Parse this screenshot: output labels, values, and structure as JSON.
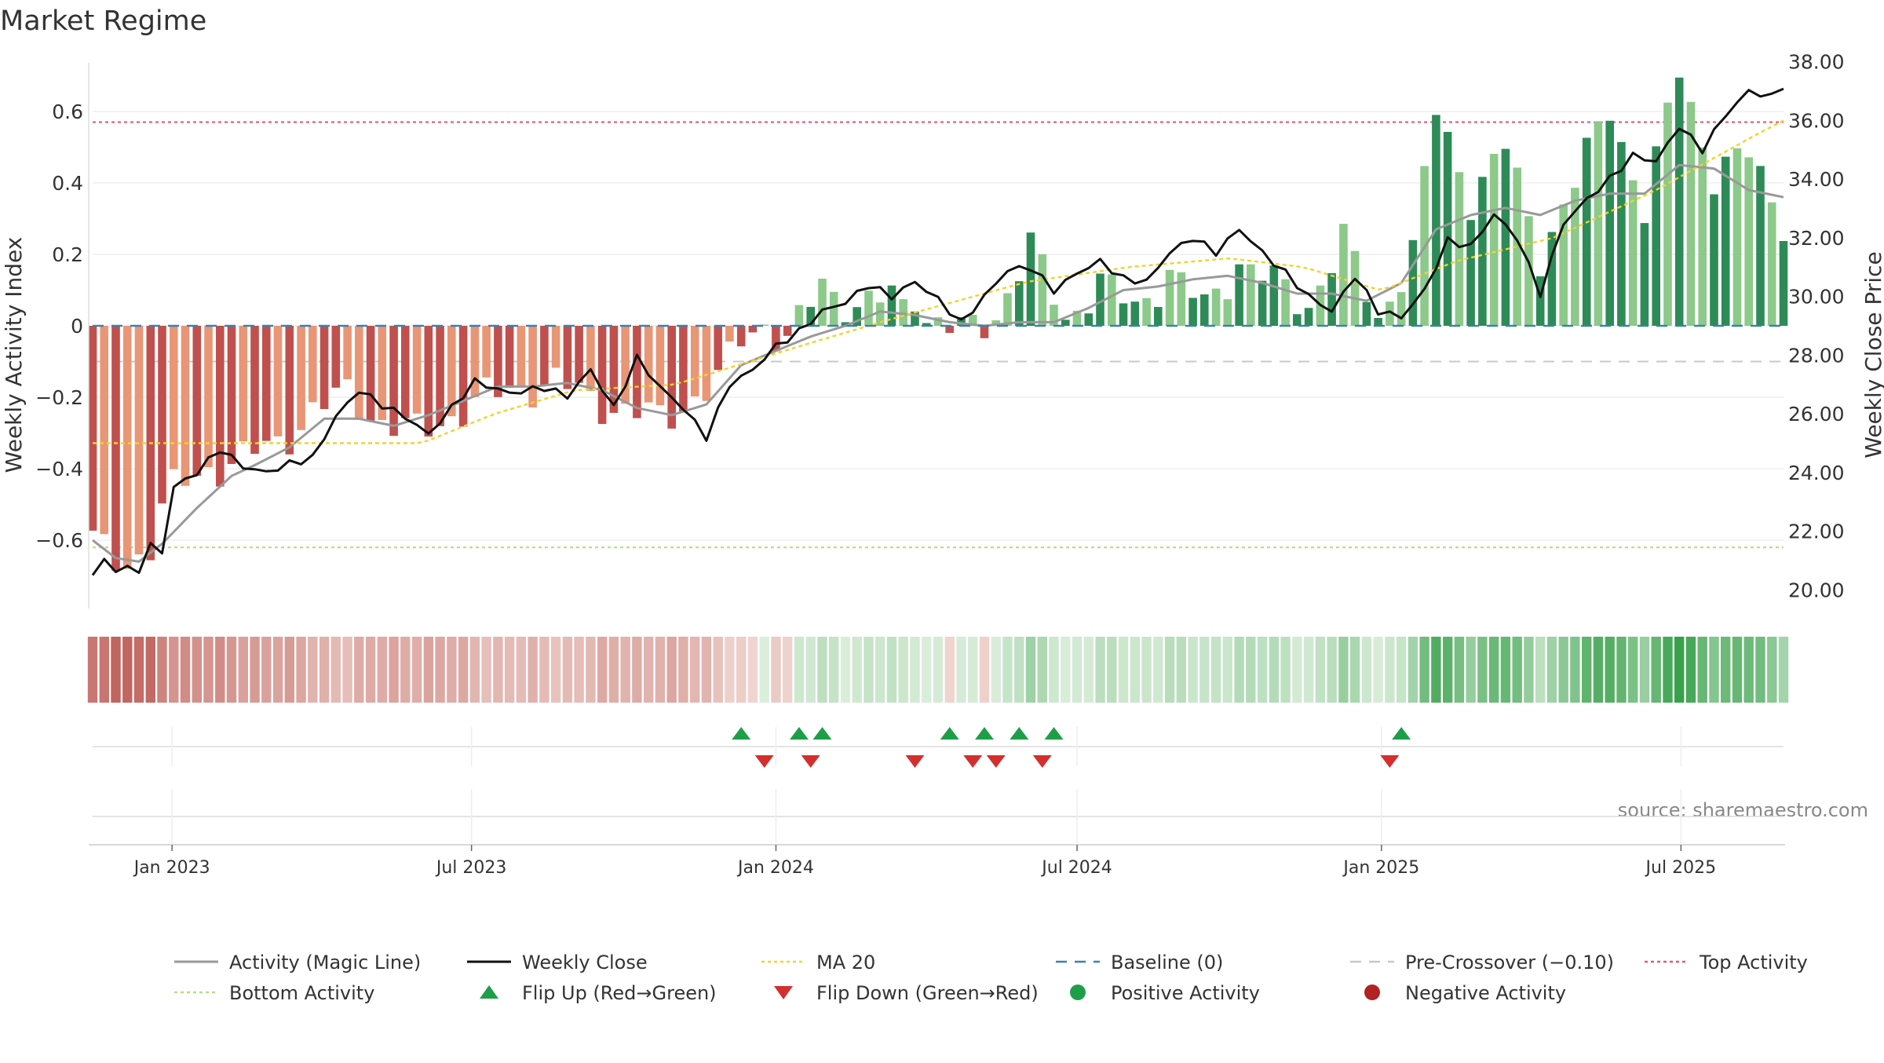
{
  "title": "Market Regime",
  "source_text": "source: sharemaestro.com",
  "colors": {
    "neg_dark": "#c0504d",
    "neg_light": "#e89676",
    "pos_dark": "#2e8b57",
    "pos_light": "#8cc98a",
    "magic": "#999999",
    "close": "#111111",
    "ma": "#f2d22e",
    "baseline": "#3a7fb5",
    "precross": "#c8c8c8",
    "top": "#e05a7a",
    "bottom": "#b9dd80",
    "flip_up": "#1f9e4a",
    "flip_down": "#d32f2f",
    "pos_dot": "#1f9e4a",
    "neg_dot": "#b22222"
  },
  "chart_data": {
    "type": "bar+line",
    "date_range": [
      "2022-11-14",
      "2025-09-01"
    ],
    "left_axis": {
      "label": "Weekly Activity Index",
      "ylim": [
        -0.78,
        0.78
      ],
      "ticks": [
        -0.6,
        -0.4,
        -0.2,
        0,
        0.2,
        0.4,
        0.6
      ],
      "tick_labels": [
        "−0.6",
        "−0.4",
        "−0.2",
        "0",
        "0.2",
        "0.4",
        "0.6"
      ]
    },
    "right_axis": {
      "label": "Weekly Close Price",
      "ylim": [
        19.5,
        38.5
      ],
      "ticks": [
        20,
        22,
        24,
        26,
        28,
        30,
        32,
        34,
        36,
        38
      ],
      "tick_labels": [
        "20.00",
        "22.00",
        "24.00",
        "26.00",
        "28.00",
        "30.00",
        "32.00",
        "34.00",
        "36.00",
        "38.00"
      ]
    },
    "x_ticks": [
      {
        "label": "Jan 2023",
        "date": "2023-01-01"
      },
      {
        "label": "Jul 2023",
        "date": "2023-07-01"
      },
      {
        "label": "Jan 2024",
        "date": "2024-01-01"
      },
      {
        "label": "Jul 2024",
        "date": "2024-07-01"
      },
      {
        "label": "Jan 2025",
        "date": "2025-01-01"
      },
      {
        "label": "Jul 2025",
        "date": "2025-07-01"
      }
    ],
    "reference_lines": {
      "baseline": 0,
      "pre_crossover": -0.1,
      "top_activity": 0.57,
      "bottom_activity": -0.62
    },
    "activity_keys": [
      [
        "2022-11-14",
        -0.6
      ],
      [
        "2022-11-21",
        -0.64
      ],
      [
        "2022-11-28",
        -0.66
      ],
      [
        "2022-12-05",
        -0.66
      ],
      [
        "2022-12-12",
        -0.64
      ],
      [
        "2022-12-19",
        -0.61
      ],
      [
        "2022-12-26",
        -0.51
      ],
      [
        "2023-01-02",
        -0.46
      ],
      [
        "2023-01-23",
        -0.4
      ],
      [
        "2023-02-13",
        -0.37
      ],
      [
        "2023-03-06",
        -0.33
      ],
      [
        "2023-03-27",
        -0.24
      ],
      [
        "2023-04-17",
        -0.19
      ],
      [
        "2023-05-08",
        -0.27
      ],
      [
        "2023-05-29",
        -0.3
      ],
      [
        "2023-06-19",
        -0.25
      ],
      [
        "2023-07-10",
        -0.2
      ],
      [
        "2023-07-31",
        -0.17
      ],
      [
        "2023-08-21",
        -0.16
      ],
      [
        "2023-09-11",
        -0.2
      ],
      [
        "2023-10-02",
        -0.24
      ],
      [
        "2023-10-23",
        -0.26
      ],
      [
        "2023-11-06",
        -0.22
      ],
      [
        "2023-11-27",
        -0.16
      ],
      [
        "2023-12-11",
        -0.03
      ],
      [
        "2023-12-25",
        0.01
      ],
      [
        "2024-01-08",
        -0.05
      ],
      [
        "2024-01-29",
        0.12
      ],
      [
        "2024-02-19",
        0.05
      ],
      [
        "2024-03-11",
        0.08
      ],
      [
        "2024-04-01",
        0.02
      ],
      [
        "2024-04-22",
        -0.02
      ],
      [
        "2024-05-13",
        0.03
      ],
      [
        "2024-06-03",
        0.22
      ],
      [
        "2024-06-24",
        0.02
      ],
      [
        "2024-07-15",
        0.12
      ],
      [
        "2024-08-05",
        0.05
      ],
      [
        "2024-08-26",
        0.15
      ],
      [
        "2024-09-16",
        0.05
      ],
      [
        "2024-10-07",
        0.18
      ],
      [
        "2024-10-28",
        0.12
      ],
      [
        "2024-11-18",
        0.06
      ],
      [
        "2024-12-09",
        0.24
      ],
      [
        "2024-12-30",
        0.02
      ],
      [
        "2025-01-20",
        0.21
      ],
      [
        "2025-02-03",
        0.6
      ],
      [
        "2025-02-24",
        0.36
      ],
      [
        "2025-03-17",
        0.5
      ],
      [
        "2025-04-07",
        0.2
      ],
      [
        "2025-04-28",
        0.4
      ],
      [
        "2025-05-19",
        0.62
      ],
      [
        "2025-06-09",
        0.32
      ],
      [
        "2025-06-30",
        0.72
      ],
      [
        "2025-07-21",
        0.42
      ],
      [
        "2025-08-11",
        0.48
      ],
      [
        "2025-09-01",
        0.3
      ]
    ],
    "magic_keys": [
      [
        "2022-11-14",
        -0.6
      ],
      [
        "2022-11-28",
        -0.65
      ],
      [
        "2022-12-12",
        -0.66
      ],
      [
        "2022-12-26",
        -0.61
      ],
      [
        "2023-01-16",
        -0.51
      ],
      [
        "2023-02-06",
        -0.42
      ],
      [
        "2023-02-20",
        -0.39
      ],
      [
        "2023-03-13",
        -0.34
      ],
      [
        "2023-04-03",
        -0.26
      ],
      [
        "2023-04-24",
        -0.26
      ],
      [
        "2023-05-15",
        -0.28
      ],
      [
        "2023-06-05",
        -0.25
      ],
      [
        "2023-06-26",
        -0.21
      ],
      [
        "2023-07-17",
        -0.17
      ],
      [
        "2023-08-07",
        -0.17
      ],
      [
        "2023-08-28",
        -0.16
      ],
      [
        "2023-09-18",
        -0.18
      ],
      [
        "2023-10-09",
        -0.23
      ],
      [
        "2023-10-30",
        -0.25
      ],
      [
        "2023-11-20",
        -0.22
      ],
      [
        "2023-12-11",
        -0.11
      ],
      [
        "2024-01-01",
        -0.07
      ],
      [
        "2024-01-22",
        -0.03
      ],
      [
        "2024-02-12",
        0.0
      ],
      [
        "2024-03-04",
        0.04
      ],
      [
        "2024-03-25",
        0.03
      ],
      [
        "2024-04-15",
        0.01
      ],
      [
        "2024-05-06",
        0.0
      ],
      [
        "2024-05-27",
        0.01
      ],
      [
        "2024-06-17",
        0.01
      ],
      [
        "2024-07-08",
        0.05
      ],
      [
        "2024-07-29",
        0.1
      ],
      [
        "2024-08-19",
        0.11
      ],
      [
        "2024-09-09",
        0.13
      ],
      [
        "2024-09-30",
        0.14
      ],
      [
        "2024-10-21",
        0.12
      ],
      [
        "2024-11-11",
        0.09
      ],
      [
        "2024-12-02",
        0.09
      ],
      [
        "2024-12-23",
        0.07
      ],
      [
        "2025-01-13",
        0.12
      ],
      [
        "2025-02-03",
        0.27
      ],
      [
        "2025-02-24",
        0.31
      ],
      [
        "2025-03-17",
        0.33
      ],
      [
        "2025-04-07",
        0.31
      ],
      [
        "2025-04-28",
        0.35
      ],
      [
        "2025-05-19",
        0.37
      ],
      [
        "2025-06-09",
        0.37
      ],
      [
        "2025-06-30",
        0.45
      ],
      [
        "2025-07-21",
        0.44
      ],
      [
        "2025-08-11",
        0.38
      ],
      [
        "2025-09-01",
        0.36
      ]
    ],
    "close_keys": [
      [
        "2022-11-14",
        20.5
      ],
      [
        "2022-11-21",
        21.0
      ],
      [
        "2022-11-28",
        20.7
      ],
      [
        "2022-12-12",
        20.7
      ],
      [
        "2022-12-19",
        21.5
      ],
      [
        "2022-12-26",
        21.3
      ],
      [
        "2023-01-02",
        23.5
      ],
      [
        "2023-01-16",
        24.0
      ],
      [
        "2023-01-30",
        24.8
      ],
      [
        "2023-02-13",
        24.2
      ],
      [
        "2023-02-27",
        24.0
      ],
      [
        "2023-03-13",
        24.3
      ],
      [
        "2023-03-27",
        24.5
      ],
      [
        "2023-04-10",
        25.9
      ],
      [
        "2023-04-24",
        26.8
      ],
      [
        "2023-05-08",
        26.3
      ],
      [
        "2023-05-22",
        25.9
      ],
      [
        "2023-06-05",
        25.3
      ],
      [
        "2023-06-19",
        26.2
      ],
      [
        "2023-07-03",
        27.1
      ],
      [
        "2023-07-24",
        26.7
      ],
      [
        "2023-08-14",
        26.9
      ],
      [
        "2023-08-28",
        26.6
      ],
      [
        "2023-09-11",
        27.5
      ],
      [
        "2023-09-25",
        26.2
      ],
      [
        "2023-10-09",
        27.9
      ],
      [
        "2023-10-23",
        26.9
      ],
      [
        "2023-11-06",
        26.2
      ],
      [
        "2023-11-20",
        25.2
      ],
      [
        "2023-12-04",
        27.0
      ],
      [
        "2023-12-18",
        27.5
      ],
      [
        "2024-01-01",
        28.3
      ],
      [
        "2024-01-15",
        28.8
      ],
      [
        "2024-01-29",
        29.5
      ],
      [
        "2024-02-12",
        29.8
      ],
      [
        "2024-02-26",
        30.4
      ],
      [
        "2024-03-11",
        30.0
      ],
      [
        "2024-03-25",
        30.5
      ],
      [
        "2024-04-08",
        29.9
      ],
      [
        "2024-04-22",
        29.1
      ],
      [
        "2024-05-06",
        30.0
      ],
      [
        "2024-05-20",
        30.9
      ],
      [
        "2024-06-03",
        31.0
      ],
      [
        "2024-06-17",
        30.2
      ],
      [
        "2024-07-01",
        30.8
      ],
      [
        "2024-07-15",
        31.2
      ],
      [
        "2024-07-29",
        30.6
      ],
      [
        "2024-08-12",
        30.5
      ],
      [
        "2024-08-26",
        31.5
      ],
      [
        "2024-09-09",
        32.0
      ],
      [
        "2024-09-23",
        31.5
      ],
      [
        "2024-10-07",
        32.3
      ],
      [
        "2024-10-21",
        31.5
      ],
      [
        "2024-11-04",
        30.8
      ],
      [
        "2024-11-18",
        30.0
      ],
      [
        "2024-12-02",
        29.5
      ],
      [
        "2024-12-16",
        30.7
      ],
      [
        "2024-12-30",
        29.5
      ],
      [
        "2025-01-13",
        29.3
      ],
      [
        "2025-01-27",
        30.2
      ],
      [
        "2025-02-10",
        31.9
      ],
      [
        "2025-02-24",
        31.7
      ],
      [
        "2025-03-10",
        32.8
      ],
      [
        "2025-03-24",
        32.0
      ],
      [
        "2025-04-07",
        30.1
      ],
      [
        "2025-04-21",
        32.5
      ],
      [
        "2025-05-05",
        33.3
      ],
      [
        "2025-05-19",
        34.0
      ],
      [
        "2025-06-02",
        34.8
      ],
      [
        "2025-06-16",
        34.6
      ],
      [
        "2025-06-30",
        35.8
      ],
      [
        "2025-07-14",
        35.0
      ],
      [
        "2025-07-28",
        36.2
      ],
      [
        "2025-08-11",
        37.0
      ],
      [
        "2025-08-25",
        36.8
      ],
      [
        "2025-09-01",
        37.2
      ],
      [
        "2025-09-08",
        36.9
      ]
    ],
    "ma_keys": [
      [
        "2022-11-14",
        25.0
      ],
      [
        "2023-06-01",
        25.0
      ],
      [
        "2023-07-15",
        26.0
      ],
      [
        "2023-09-01",
        26.8
      ],
      [
        "2023-11-01",
        27.0
      ],
      [
        "2024-01-15",
        28.3
      ],
      [
        "2024-03-15",
        29.3
      ],
      [
        "2024-06-01",
        30.5
      ],
      [
        "2024-08-01",
        31.0
      ],
      [
        "2024-10-01",
        31.3
      ],
      [
        "2024-11-15",
        31.0
      ],
      [
        "2025-01-01",
        30.2
      ],
      [
        "2025-02-15",
        31.2
      ],
      [
        "2025-04-15",
        32.0
      ],
      [
        "2025-06-15",
        33.6
      ],
      [
        "2025-08-15",
        35.5
      ],
      [
        "2025-09-08",
        36.2
      ]
    ],
    "flip_up_dates": [
      "2023-12-11",
      "2024-01-15",
      "2024-01-29",
      "2024-04-15",
      "2024-05-06",
      "2024-05-27",
      "2024-06-17",
      "2025-01-13"
    ],
    "flip_down_dates": [
      "2023-12-25",
      "2024-01-22",
      "2024-03-25",
      "2024-04-29",
      "2024-05-13",
      "2024-06-10",
      "2025-01-06"
    ],
    "legend": [
      {
        "label": "Activity (Magic Line)",
        "type": "line",
        "key": "magic"
      },
      {
        "label": "Weekly Close",
        "type": "line",
        "key": "close"
      },
      {
        "label": "MA 20",
        "type": "dotted",
        "key": "ma"
      },
      {
        "label": "Baseline (0)",
        "type": "dashed",
        "key": "baseline"
      },
      {
        "label": "Pre-Crossover (−0.10)",
        "type": "dashed",
        "key": "precross"
      },
      {
        "label": "Top Activity",
        "type": "dotted",
        "key": "top"
      },
      {
        "label": "Bottom Activity",
        "type": "dotted",
        "key": "bottom"
      },
      {
        "label": "Flip Up (Red→Green)",
        "type": "tri_up",
        "key": "flip_up"
      },
      {
        "label": "Flip Down (Green→Red)",
        "type": "tri_down",
        "key": "flip_down"
      },
      {
        "label": "Positive Activity",
        "type": "dot",
        "key": "pos_dot"
      },
      {
        "label": "Negative Activity",
        "type": "dot",
        "key": "neg_dot"
      }
    ]
  }
}
